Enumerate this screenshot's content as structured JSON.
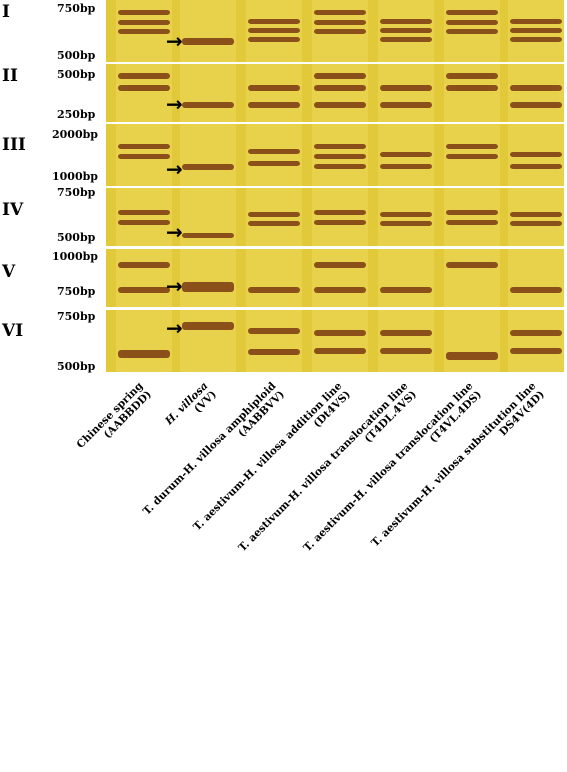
{
  "panels": [
    {
      "id": "I",
      "roman": "I",
      "markers": [
        "750bp",
        "500bp"
      ]
    },
    {
      "id": "II",
      "roman": "II",
      "markers": [
        "500bp",
        "250bp"
      ]
    },
    {
      "id": "III",
      "roman": "III",
      "markers": [
        "2000bp",
        "1000bp"
      ]
    },
    {
      "id": "IV",
      "roman": "IV",
      "markers": [
        "750bp",
        "500bp"
      ]
    },
    {
      "id": "V",
      "roman": "V",
      "markers": [
        "1000bp",
        "750bp"
      ]
    },
    {
      "id": "VI",
      "roman": "VI",
      "markers": [
        "750bp",
        "500bp"
      ]
    }
  ],
  "lanes": [
    {
      "l1": "Chinese spring",
      "l2": "(AABBDD)"
    },
    {
      "l1": "H. villosa",
      "l2": "(VV)"
    },
    {
      "l1": "T. durum-H. villosa amphiploid",
      "l2": "(AABBVV)"
    },
    {
      "l1": "T. aestivum-H. villosa addition line",
      "l2": "(Dt4VS)"
    },
    {
      "l1": "T. aestivum-H. villosa translocation line",
      "l2": "(T4DL.4VS)"
    },
    {
      "l1": "T. aestivum-H. villosa translocation line",
      "l2": "(T4VL.4DS)"
    },
    {
      "l1": "T. aestivum-H. villosa substitution line",
      "l2": "DS4V(4D)"
    }
  ],
  "colors": {
    "gel": "#e2c93a",
    "gel_light": "#ecd85a",
    "band": "#7a3a12",
    "band_dark": "#5a2508",
    "gap": "#ffffff"
  },
  "icons": {
    "arrow": "right-arrow-icon"
  }
}
